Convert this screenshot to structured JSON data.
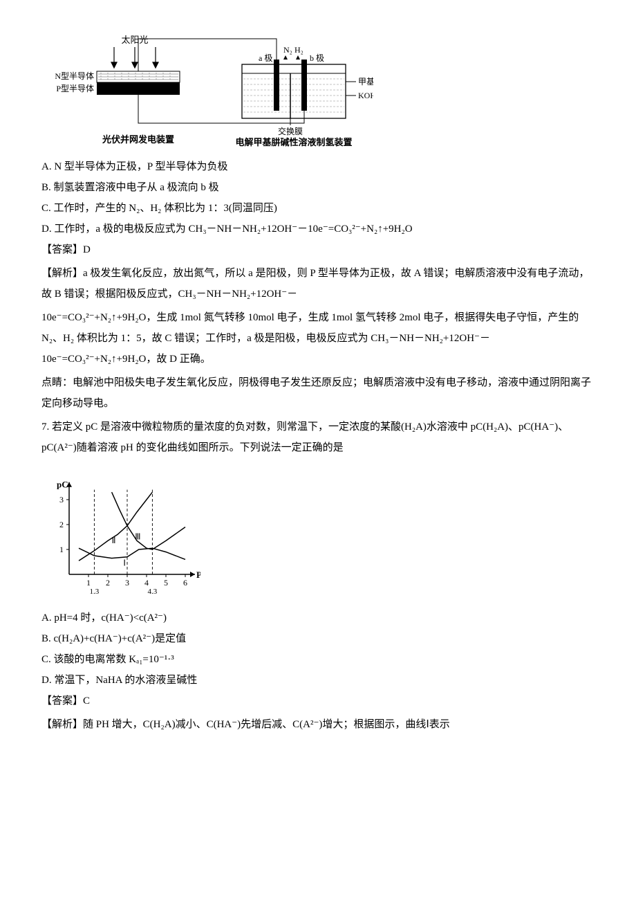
{
  "figure1": {
    "type": "diagram",
    "labels": {
      "sun": "太阳光",
      "n_semi": "N型半导体",
      "p_semi": "P型半导体",
      "left_device": "光伏并网发电装置",
      "a_electrode": "a 极",
      "n2": "N₂",
      "h2": "H₂",
      "b_electrode": "b 极",
      "methylhydrazine": "甲基肼",
      "koh": "KOH 溶液",
      "membrane": "交换膜",
      "right_device": "电解甲基肼碱性溶液制氢装置"
    },
    "colors": {
      "stroke": "#000000",
      "bg": "#ffffff",
      "hatch": "#666666"
    }
  },
  "q6_options": {
    "A": "A. N 型半导体为正极，P 型半导体为负极",
    "B": "B. 制氢装置溶液中电子从 a 极流向 b 极",
    "C": "C. 工作时，产生的 N₂、H₂ 体积比为 1：3(同温同压)",
    "D": "D. 工作时，a 极的电极反应式为 CH₃－NH－NH₂+12OH⁻－10e⁻=CO₃²⁻+N₂↑+9H₂O"
  },
  "q6_answer_label": "【答案】D",
  "q6_explain_label": "【解析】",
  "q6_explain_p1": "a 极发生氧化反应，放出氮气，所以 a 是阳极，则 P 型半导体为正极，故 A 错误；电解质溶液中没有电子流动，故 B 错误；根据阳极反应式，CH₃－NH－NH₂+12OH⁻－",
  "q6_explain_p2": "10e⁻=CO₃²⁻+N₂↑+9H₂O，生成 1mol 氮气转移 10mol 电子，生成 1mol 氢气转移 2mol 电子，根据得失电子守恒，产生的 N₂、H₂ 体积比为 1：5，故 C 错误；工作时，a 极是阳极，电极反应式为 CH₃－NH－NH₂+12OH⁻－10e⁻=CO₃²⁻+N₂↑+9H₂O，故 D 正确。",
  "q6_tip": "点睛：电解池中阳极失电子发生氧化反应，阴极得电子发生还原反应；电解质溶液中没有电子移动，溶液中通过阴阳离子定向移动导电。",
  "q7_stem": "7. 若定义 pC 是溶液中微粒物质的量浓度的负对数，则常温下，一定浓度的某酸(H₂A)水溶液中 pC(H₂A)、pC(HA⁻)、pC(A²⁻)随着溶液 pH 的变化曲线如图所示。下列说法一定正确的是",
  "figure2": {
    "type": "line",
    "x_label": "PH",
    "y_label": "pC",
    "x_ticks": [
      1,
      2,
      3,
      4,
      5,
      6
    ],
    "x_tick_labels_extra": [
      "1.3",
      "4.3"
    ],
    "y_ticks": [
      1,
      2,
      3
    ],
    "curve_I_label": "Ⅰ",
    "curve_II_label": "Ⅱ",
    "curve_III_label": "Ⅲ",
    "colors": {
      "axis": "#000000",
      "curve": "#000000",
      "dashed": "#000000"
    },
    "curves": {
      "I": [
        [
          0.5,
          1.05
        ],
        [
          1.3,
          0.75
        ],
        [
          2.2,
          0.65
        ],
        [
          3,
          0.7
        ],
        [
          3.6,
          1.0
        ],
        [
          4.3,
          1.05
        ],
        [
          5,
          0.9
        ],
        [
          6,
          0.6
        ]
      ],
      "II": [
        [
          0.5,
          0.55
        ],
        [
          1.3,
          0.95
        ],
        [
          2,
          1.35
        ],
        [
          2.5,
          1.6
        ],
        [
          3,
          1.95
        ],
        [
          3.5,
          2.5
        ],
        [
          4,
          3.0
        ],
        [
          4.3,
          3.3
        ]
      ],
      "III": [
        [
          2.2,
          3.3
        ],
        [
          2.6,
          2.6
        ],
        [
          3,
          1.95
        ],
        [
          3.5,
          1.35
        ],
        [
          4,
          1.05
        ],
        [
          4.3,
          1.0
        ],
        [
          5,
          1.35
        ],
        [
          6,
          1.9
        ]
      ]
    },
    "dashed_x": [
      1.3,
      3,
      4.3
    ]
  },
  "q7_options": {
    "A": "A. pH=4 时，c(HA⁻)<c(A²⁻)",
    "B": "B. c(H₂A)+c(HA⁻)+c(A²⁻)是定值",
    "C": "C. 该酸的电离常数 Kₐ₁=10⁻¹·³",
    "D": "D. 常温下，NaHA 的水溶液呈碱性"
  },
  "q7_answer_label": "【答案】C",
  "q7_explain": "【解析】随 PH 增大，C(H₂A)减小、C(HA⁻)先增后减、C(A²⁻)增大；根据图示，曲线Ⅰ表示"
}
